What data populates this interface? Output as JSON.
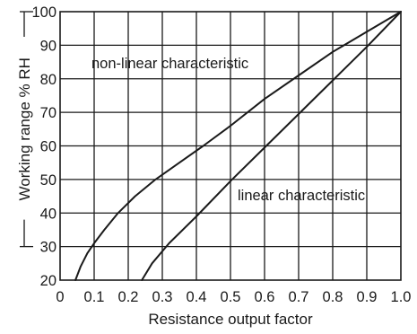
{
  "chart_data": {
    "type": "line",
    "title": "",
    "xlabel": "Resistance output factor",
    "ylabel": "Working range % RH",
    "xlim": [
      0,
      1.0
    ],
    "ylim": [
      20,
      100
    ],
    "x_ticks": [
      "0",
      "0.1",
      "0.2",
      "0.3",
      "0.4",
      "0.5",
      "0.6",
      "0.7",
      "0.8",
      "0.9",
      "1.0"
    ],
    "y_ticks": [
      "20",
      "30",
      "40",
      "50",
      "60",
      "70",
      "80",
      "90",
      "100"
    ],
    "grid": true,
    "working_range_marker": {
      "from": 30,
      "to": 100
    },
    "series": [
      {
        "name": "non-linear characteristic",
        "x": [
          0.045,
          0.06,
          0.08,
          0.1,
          0.13,
          0.17,
          0.22,
          0.28,
          0.35,
          0.42,
          0.5,
          0.6,
          0.7,
          0.8,
          0.9,
          1.0
        ],
        "y": [
          20,
          24,
          28,
          31,
          35,
          40,
          45,
          50,
          55,
          60,
          66,
          74,
          81,
          88,
          94,
          100
        ]
      },
      {
        "name": "linear characteristic",
        "x": [
          0.24,
          0.27,
          0.32,
          0.4,
          0.5,
          0.6,
          0.7,
          0.8,
          0.9,
          1.0
        ],
        "y": [
          20,
          25,
          31,
          39,
          49.5,
          59.5,
          69.5,
          79.5,
          89.5,
          100
        ]
      }
    ],
    "annotations": [
      {
        "text": "non-linear characteristic"
      },
      {
        "text": "linear characteristic"
      }
    ]
  }
}
